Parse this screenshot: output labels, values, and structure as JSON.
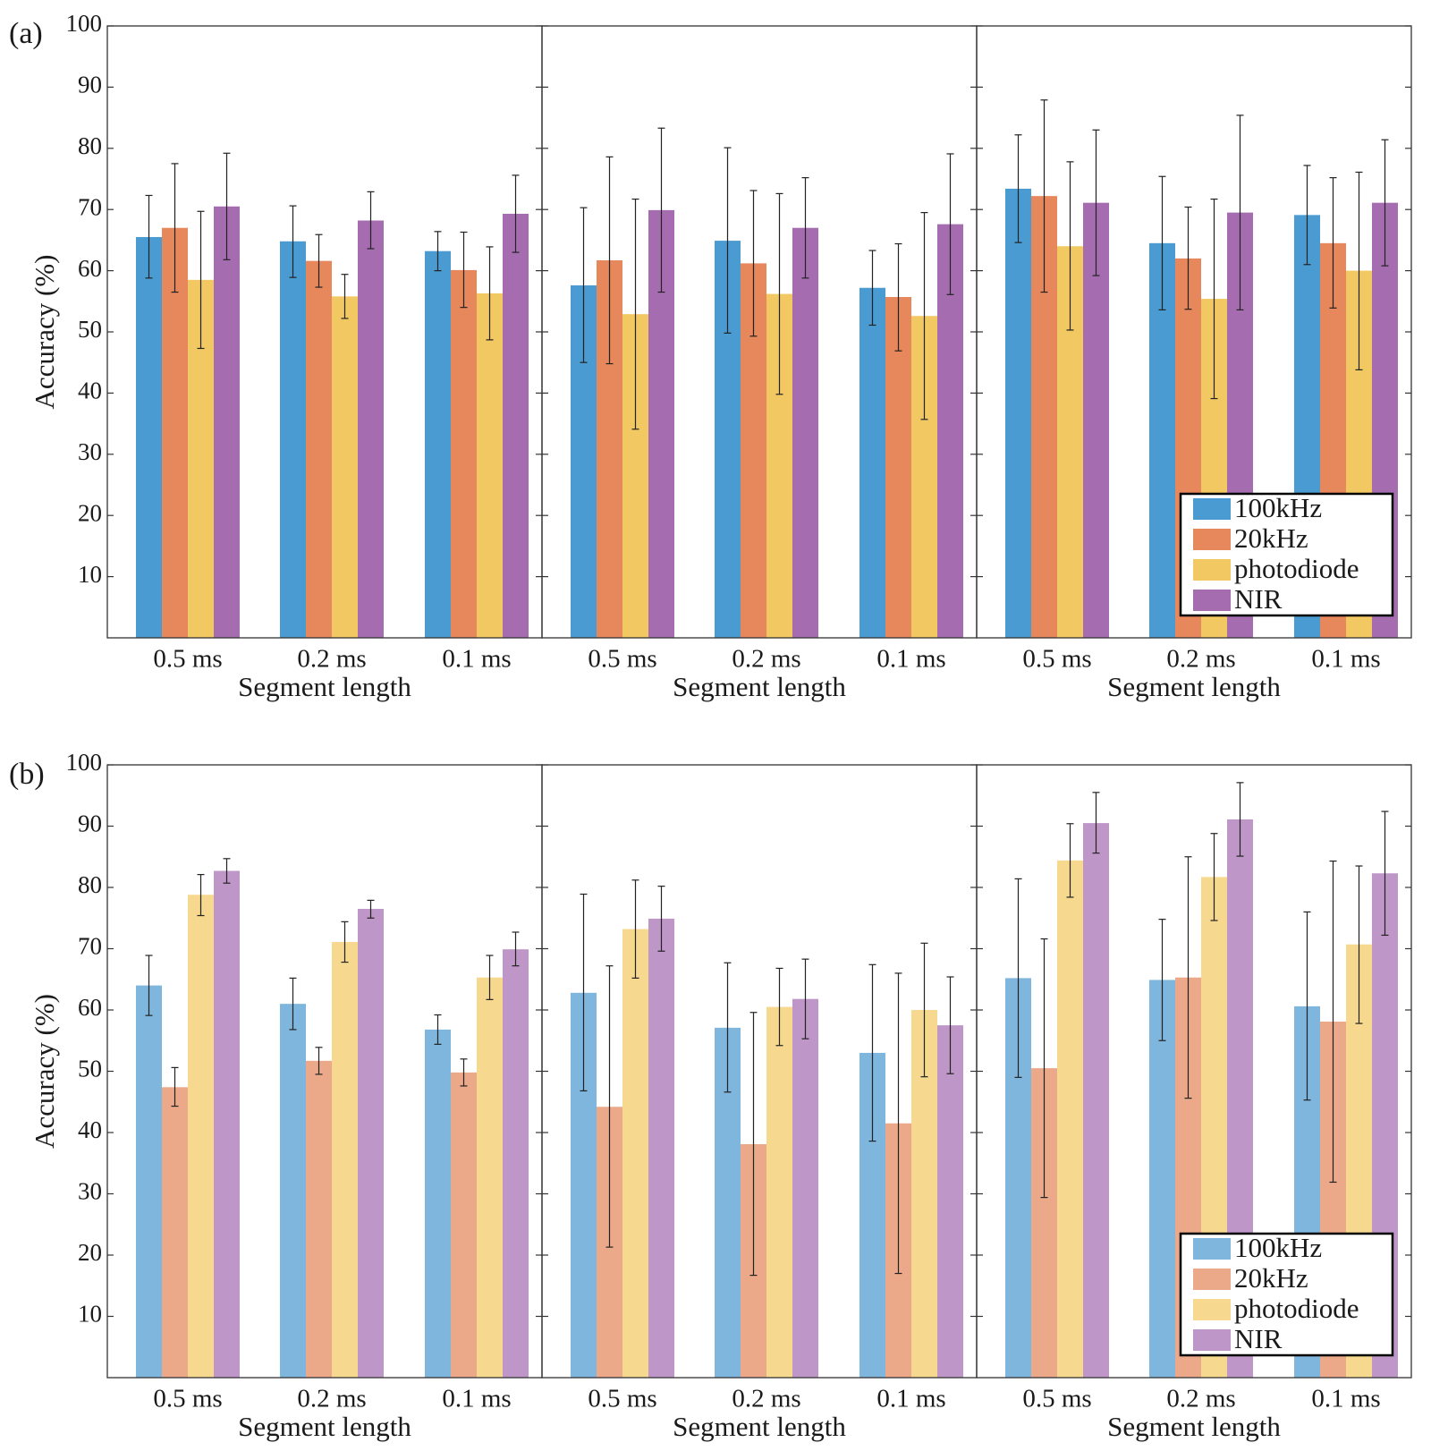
{
  "figure": {
    "panel_labels": [
      "(a)",
      "(b)"
    ],
    "y_axis_title": "Accuracy (%)",
    "x_axis_title": "Segment length"
  },
  "legend": [
    "100kHz",
    "20kHz",
    "photodiode",
    "NIR"
  ],
  "colors": {
    "a": [
      "#4a9bd1",
      "#e6875c",
      "#f2c862",
      "#a56db0"
    ],
    "b": [
      "#7fb6de",
      "#eba98a",
      "#f6d88e",
      "#bf96c8"
    ]
  },
  "chart_data": [
    {
      "type": "bar",
      "panel": "(a)",
      "ylabel": "Accuracy (%)",
      "xlabel": "Segment length",
      "ylim": [
        0,
        100
      ],
      "yticks": [
        10,
        20,
        30,
        40,
        50,
        60,
        70,
        80,
        90,
        100
      ],
      "categories": [
        "0.5 ms",
        "0.2 ms",
        "0.1 ms"
      ],
      "legend_position": "bottom-right of last subplot",
      "subplots": [
        {
          "series": [
            {
              "name": "100kHz",
              "values": [
                65.5,
                64.8,
                63.2
              ],
              "err_low": [
                58.8,
                58.9,
                60.0
              ],
              "err_high": [
                72.3,
                70.6,
                66.4
              ]
            },
            {
              "name": "20kHz",
              "values": [
                67.0,
                61.6,
                60.1
              ],
              "err_low": [
                56.5,
                57.3,
                54.0
              ],
              "err_high": [
                77.5,
                65.9,
                66.3
              ]
            },
            {
              "name": "photodiode",
              "values": [
                58.5,
                55.8,
                56.3
              ],
              "err_low": [
                47.3,
                52.2,
                48.7
              ],
              "err_high": [
                69.7,
                59.4,
                63.9
              ]
            },
            {
              "name": "NIR",
              "values": [
                70.5,
                68.2,
                69.3
              ],
              "err_low": [
                61.8,
                63.6,
                63.0
              ],
              "err_high": [
                79.2,
                72.9,
                75.6
              ]
            }
          ]
        },
        {
          "series": [
            {
              "name": "100kHz",
              "values": [
                57.6,
                64.9,
                57.2
              ],
              "err_low": [
                45.0,
                49.8,
                51.1
              ],
              "err_high": [
                70.3,
                80.1,
                63.3
              ]
            },
            {
              "name": "20kHz",
              "values": [
                61.7,
                61.2,
                55.7
              ],
              "err_low": [
                44.8,
                49.3,
                46.9
              ],
              "err_high": [
                78.6,
                73.1,
                64.4
              ]
            },
            {
              "name": "photodiode",
              "values": [
                52.9,
                56.2,
                52.6
              ],
              "err_low": [
                34.1,
                39.8,
                35.7
              ],
              "err_high": [
                71.7,
                72.6,
                69.5
              ]
            },
            {
              "name": "NIR",
              "values": [
                69.9,
                67.0,
                67.6
              ],
              "err_low": [
                56.5,
                58.8,
                56.1
              ],
              "err_high": [
                83.3,
                75.2,
                79.1
              ]
            }
          ]
        },
        {
          "series": [
            {
              "name": "100kHz",
              "values": [
                73.4,
                64.5,
                69.1
              ],
              "err_low": [
                64.6,
                53.6,
                61.0
              ],
              "err_high": [
                82.2,
                75.4,
                77.2
              ]
            },
            {
              "name": "20kHz",
              "values": [
                72.2,
                62.0,
                64.5
              ],
              "err_low": [
                56.5,
                53.7,
                53.9
              ],
              "err_high": [
                87.9,
                70.4,
                75.2
              ]
            },
            {
              "name": "photodiode",
              "values": [
                64.0,
                55.4,
                60.0
              ],
              "err_low": [
                50.3,
                39.1,
                43.8
              ],
              "err_high": [
                77.8,
                71.7,
                76.1
              ]
            },
            {
              "name": "NIR",
              "values": [
                71.1,
                69.5,
                71.1
              ],
              "err_low": [
                59.2,
                53.6,
                60.8
              ],
              "err_high": [
                83.0,
                85.4,
                81.4
              ]
            }
          ]
        }
      ]
    },
    {
      "type": "bar",
      "panel": "(b)",
      "ylabel": "Accuracy (%)",
      "xlabel": "Segment length",
      "ylim": [
        0,
        100
      ],
      "yticks": [
        10,
        20,
        30,
        40,
        50,
        60,
        70,
        80,
        90,
        100
      ],
      "categories": [
        "0.5 ms",
        "0.2 ms",
        "0.1 ms"
      ],
      "legend_position": "bottom-right of last subplot",
      "subplots": [
        {
          "series": [
            {
              "name": "100kHz",
              "values": [
                64.0,
                61.0,
                56.8
              ],
              "err_low": [
                59.1,
                56.8,
                54.4
              ],
              "err_high": [
                68.9,
                65.2,
                59.2
              ]
            },
            {
              "name": "20kHz",
              "values": [
                47.4,
                51.7,
                49.8
              ],
              "err_low": [
                44.3,
                49.5,
                47.6
              ],
              "err_high": [
                50.6,
                53.9,
                52.0
              ]
            },
            {
              "name": "photodiode",
              "values": [
                78.8,
                71.1,
                65.3
              ],
              "err_low": [
                75.4,
                67.8,
                61.7
              ],
              "err_high": [
                82.1,
                74.4,
                68.9
              ]
            },
            {
              "name": "NIR",
              "values": [
                82.7,
                76.5,
                69.9
              ],
              "err_low": [
                80.7,
                75.0,
                67.2
              ],
              "err_high": [
                84.7,
                77.9,
                72.7
              ]
            }
          ]
        },
        {
          "series": [
            {
              "name": "100kHz",
              "values": [
                62.8,
                57.1,
                53.0
              ],
              "err_low": [
                46.8,
                46.6,
                38.6
              ],
              "err_high": [
                78.9,
                67.7,
                67.4
              ]
            },
            {
              "name": "20kHz",
              "values": [
                44.2,
                38.1,
                41.5
              ],
              "err_low": [
                21.3,
                16.7,
                17.0
              ],
              "err_high": [
                67.2,
                59.6,
                66.0
              ]
            },
            {
              "name": "photodiode",
              "values": [
                73.2,
                60.5,
                60.0
              ],
              "err_low": [
                65.2,
                54.2,
                49.1
              ],
              "err_high": [
                81.2,
                66.8,
                70.9
              ]
            },
            {
              "name": "NIR",
              "values": [
                74.9,
                61.8,
                57.5
              ],
              "err_low": [
                69.6,
                55.3,
                49.6
              ],
              "err_high": [
                80.2,
                68.3,
                65.4
              ]
            }
          ]
        },
        {
          "series": [
            {
              "name": "100kHz",
              "values": [
                65.2,
                64.9,
                60.6
              ],
              "err_low": [
                49.0,
                55.0,
                45.3
              ],
              "err_high": [
                81.4,
                74.8,
                76.0
              ]
            },
            {
              "name": "20kHz",
              "values": [
                50.5,
                65.3,
                58.1
              ],
              "err_low": [
                29.4,
                45.6,
                31.9
              ],
              "err_high": [
                71.6,
                85.0,
                84.3
              ]
            },
            {
              "name": "photodiode",
              "values": [
                84.4,
                81.7,
                70.7
              ],
              "err_low": [
                78.4,
                74.6,
                57.8
              ],
              "err_high": [
                90.4,
                88.8,
                83.5
              ]
            },
            {
              "name": "NIR",
              "values": [
                90.5,
                91.1,
                82.3
              ],
              "err_low": [
                85.6,
                85.1,
                72.2
              ],
              "err_high": [
                95.5,
                97.1,
                92.4
              ]
            }
          ]
        }
      ]
    }
  ]
}
